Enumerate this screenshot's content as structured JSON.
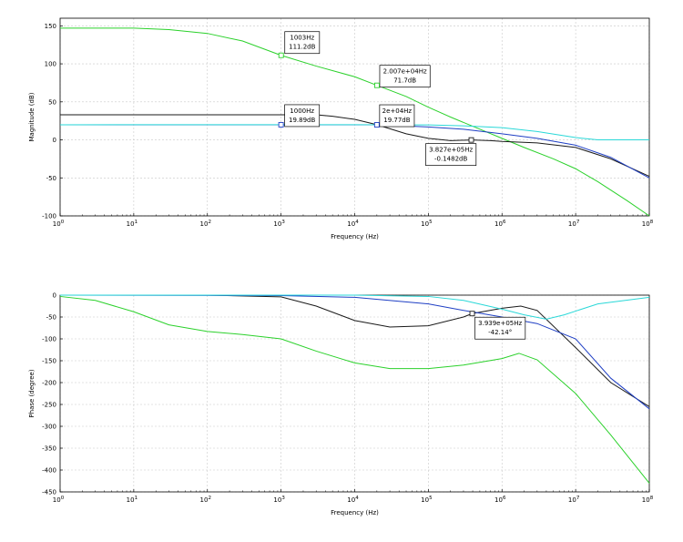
{
  "chart_data": [
    {
      "type": "line",
      "title": "",
      "xlabel": "Frequency (Hz)",
      "ylabel": "Magnitude (dB)",
      "xscale": "log",
      "xlim": [
        1,
        100000000
      ],
      "ylim": [
        -100,
        160
      ],
      "grid": true,
      "x_tick_labels": [
        {
          "base": "10",
          "exp": "0"
        },
        {
          "base": "10",
          "exp": "1"
        },
        {
          "base": "10",
          "exp": "2"
        },
        {
          "base": "10",
          "exp": "3"
        },
        {
          "base": "10",
          "exp": "4"
        },
        {
          "base": "10",
          "exp": "5"
        },
        {
          "base": "10",
          "exp": "6"
        },
        {
          "base": "10",
          "exp": "7"
        },
        {
          "base": "10",
          "exp": "8"
        }
      ],
      "y_ticks": [
        150,
        100,
        50,
        0,
        -50,
        -100
      ],
      "y_tick_labels": [
        "150",
        "100",
        "50",
        "0",
        "-50",
        "-100"
      ],
      "series": [
        {
          "color": "#2bd12b",
          "points": [
            [
              1,
              147
            ],
            [
              10,
              147
            ],
            [
              30,
              145
            ],
            [
              100,
              140
            ],
            [
              300,
              130
            ],
            [
              1000,
              111.2
            ],
            [
              3000,
              97
            ],
            [
              10000,
              83
            ],
            [
              20070,
              71.7
            ],
            [
              50000,
              57
            ],
            [
              100000,
              43
            ],
            [
              200000,
              30
            ],
            [
              500000,
              14
            ],
            [
              1000000,
              2
            ],
            [
              2000000,
              -10
            ],
            [
              5000000,
              -25
            ],
            [
              10000000,
              -38
            ],
            [
              20000000,
              -55
            ],
            [
              50000000,
              -80
            ],
            [
              100000000,
              -100
            ]
          ]
        },
        {
          "color": "#1a1a1a",
          "points": [
            [
              1,
              33
            ],
            [
              10,
              33
            ],
            [
              100,
              33
            ],
            [
              1000,
              33
            ],
            [
              3000,
              33
            ],
            [
              5000,
              31
            ],
            [
              10000,
              27
            ],
            [
              20000,
              20
            ],
            [
              50000,
              8
            ],
            [
              100000,
              2
            ],
            [
              200000,
              -1
            ],
            [
              382700,
              -0.1482
            ],
            [
              700000,
              -1
            ],
            [
              1000000,
              -2
            ],
            [
              3000000,
              -4
            ],
            [
              10000000,
              -10
            ],
            [
              30000000,
              -25
            ],
            [
              100000000,
              -48
            ]
          ]
        },
        {
          "color": "#1f3fc4",
          "points": [
            [
              1,
              19.89
            ],
            [
              10,
              19.89
            ],
            [
              100,
              19.89
            ],
            [
              1000,
              19.89
            ],
            [
              20000,
              19.77
            ],
            [
              100000,
              17
            ],
            [
              300000,
              14
            ],
            [
              1000000,
              8
            ],
            [
              3000000,
              2
            ],
            [
              10000000,
              -7
            ],
            [
              30000000,
              -23
            ],
            [
              100000000,
              -50
            ]
          ]
        },
        {
          "color": "#2ad8d8",
          "points": [
            [
              1,
              19.89
            ],
            [
              1000,
              19.9
            ],
            [
              10000,
              19.9
            ],
            [
              100000,
              19.6
            ],
            [
              300000,
              18.5
            ],
            [
              1000000,
              16
            ],
            [
              3000000,
              11
            ],
            [
              10000000,
              3
            ],
            [
              20000000,
              0
            ],
            [
              100000000,
              0
            ]
          ]
        }
      ],
      "annotations": [
        {
          "x": 1003,
          "y": 111.2,
          "lines": [
            "1003Hz",
            "111.2dB"
          ],
          "color": "#2bd12b",
          "dx": 4,
          "dy": -26
        },
        {
          "x": 20070,
          "y": 71.7,
          "lines": [
            "2.007e+04Hz",
            "71.7dB"
          ],
          "color": "#2bd12b",
          "dx": 3,
          "dy": -22
        },
        {
          "x": 1000,
          "y": 19.89,
          "lines": [
            "1000Hz",
            "19.89dB"
          ],
          "color": "#1f3fc4",
          "dx": 4,
          "dy": -22
        },
        {
          "x": 20000,
          "y": 19.77,
          "lines": [
            "2e+04Hz",
            "19.77dB"
          ],
          "color": "#1f3fc4",
          "dx": 3,
          "dy": -22
        },
        {
          "x": 382700,
          "y": -0.1482,
          "lines": [
            "3.827e+05Hz",
            "-0.1482dB"
          ],
          "color": "#1a1a1a",
          "dx": -50,
          "dy": 4
        }
      ]
    },
    {
      "type": "line",
      "title": "",
      "xlabel": "Frequency (Hz)",
      "ylabel": "Phase (degree)",
      "xscale": "log",
      "xlim": [
        1,
        100000000
      ],
      "ylim": [
        -450,
        0
      ],
      "grid": true,
      "x_tick_labels": [
        {
          "base": "10",
          "exp": "0"
        },
        {
          "base": "10",
          "exp": "1"
        },
        {
          "base": "10",
          "exp": "2"
        },
        {
          "base": "10",
          "exp": "3"
        },
        {
          "base": "10",
          "exp": "4"
        },
        {
          "base": "10",
          "exp": "5"
        },
        {
          "base": "10",
          "exp": "6"
        },
        {
          "base": "10",
          "exp": "7"
        },
        {
          "base": "10",
          "exp": "8"
        }
      ],
      "y_ticks": [
        0,
        -50,
        -100,
        -150,
        -200,
        -250,
        -300,
        -350,
        -400,
        -450
      ],
      "y_tick_labels": [
        "0",
        "-50",
        "-100",
        "-150",
        "-200",
        "-250",
        "-300",
        "-350",
        "-400",
        "-450"
      ],
      "series": [
        {
          "color": "#2bd12b",
          "points": [
            [
              1,
              -3
            ],
            [
              3,
              -12
            ],
            [
              10,
              -38
            ],
            [
              30,
              -68
            ],
            [
              100,
              -83
            ],
            [
              300,
              -90
            ],
            [
              1000,
              -100
            ],
            [
              3000,
              -128
            ],
            [
              10000,
              -155
            ],
            [
              30000,
              -168
            ],
            [
              100000,
              -168
            ],
            [
              300000,
              -160
            ],
            [
              1000000,
              -145
            ],
            [
              1700000,
              -133
            ],
            [
              3000000,
              -148
            ],
            [
              10000000,
              -225
            ],
            [
              30000000,
              -320
            ],
            [
              100000000,
              -430
            ]
          ]
        },
        {
          "color": "#1a1a1a",
          "points": [
            [
              1,
              0
            ],
            [
              100,
              0
            ],
            [
              1000,
              -4
            ],
            [
              3000,
              -25
            ],
            [
              10000,
              -58
            ],
            [
              30000,
              -73
            ],
            [
              100000,
              -70
            ],
            [
              300000,
              -50
            ],
            [
              393900,
              -42.14
            ],
            [
              1000000,
              -30
            ],
            [
              1800000,
              -25
            ],
            [
              3000000,
              -35
            ],
            [
              10000000,
              -120
            ],
            [
              30000000,
              -200
            ],
            [
              100000000,
              -255
            ]
          ]
        },
        {
          "color": "#1f3fc4",
          "points": [
            [
              1,
              0
            ],
            [
              1000,
              -1
            ],
            [
              10000,
              -5
            ],
            [
              100000,
              -20
            ],
            [
              300000,
              -35
            ],
            [
              1000000,
              -50
            ],
            [
              3000000,
              -65
            ],
            [
              10000000,
              -100
            ],
            [
              30000000,
              -190
            ],
            [
              100000000,
              -260
            ]
          ]
        },
        {
          "color": "#2ad8d8",
          "points": [
            [
              1,
              0
            ],
            [
              10000,
              0
            ],
            [
              100000,
              -3
            ],
            [
              300000,
              -12
            ],
            [
              1000000,
              -32
            ],
            [
              2000000,
              -45
            ],
            [
              4000000,
              -55
            ],
            [
              7000000,
              -45
            ],
            [
              20000000,
              -20
            ],
            [
              100000000,
              -5
            ]
          ]
        }
      ],
      "annotations": [
        {
          "x": 393900,
          "y": -42.14,
          "lines": [
            "3.939e+05Hz",
            "-42.14°"
          ],
          "color": "#1a1a1a",
          "dx": 3,
          "dy": 4
        }
      ]
    }
  ]
}
